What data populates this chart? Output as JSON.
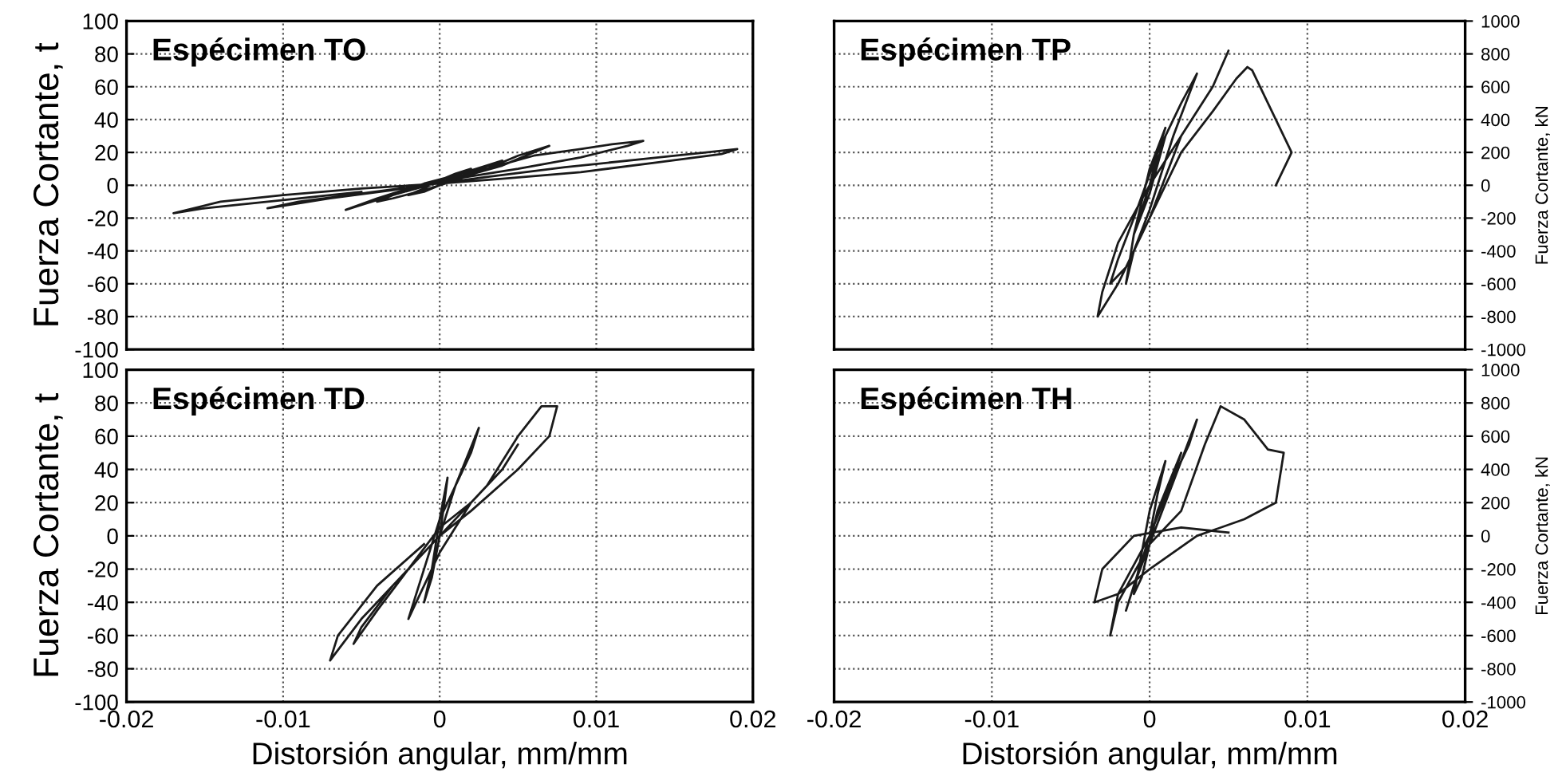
{
  "chart_data": [
    {
      "type": "line",
      "title": "Espécimen TO",
      "ylabel": "Fuerza Cortante, t",
      "xlim": [
        -0.02,
        0.02
      ],
      "xticks": [
        -0.02,
        -0.01,
        0,
        0.01,
        0.02
      ],
      "ylim": [
        -100,
        100
      ],
      "yticks": [
        -100,
        -80,
        -60,
        -40,
        -20,
        0,
        20,
        40,
        60,
        80,
        100
      ],
      "tick_labels": "y",
      "grid": true,
      "marker": "none",
      "line_style": "solid",
      "series": [
        {
          "color": "#1a1a1a",
          "x": [
            0,
            0.001,
            0.002,
            0.001,
            0,
            -0.001,
            -0.002,
            -0.001,
            0,
            0.002,
            0.004,
            0.003,
            0.001,
            -0.001,
            -0.003,
            -0.004,
            -0.003,
            -0.001,
            0.001,
            0.003,
            0.005,
            0.007,
            0.006,
            0.004,
            0.001,
            -0.002,
            -0.004,
            -0.006,
            -0.005,
            -0.003,
            0,
            0.003,
            0.006,
            0.009,
            0.011,
            0.013,
            0.012,
            0.009,
            0.005,
            0.001,
            -0.003,
            -0.007,
            -0.011,
            -0.009,
            -0.005,
            -0.001,
            0.003,
            0.008,
            0.013,
            0.017,
            0.019,
            0.018,
            0.014,
            0.009,
            0.004,
            0,
            -0.005,
            -0.01,
            -0.014,
            -0.017,
            -0.015,
            -0.01,
            -0.005
          ],
          "values": [
            0,
            6,
            10,
            7,
            3,
            -2,
            -6,
            -4,
            0,
            8,
            15,
            12,
            6,
            1,
            -6,
            -10,
            -8,
            -3,
            3,
            10,
            18,
            24,
            20,
            12,
            4,
            -2,
            -8,
            -15,
            -12,
            -6,
            2,
            10,
            18,
            22,
            25,
            27,
            24,
            17,
            10,
            4,
            -3,
            -8,
            -14,
            -10,
            -5,
            0,
            5,
            11,
            16,
            20,
            22,
            19,
            14,
            8,
            4,
            1,
            -2,
            -6,
            -10,
            -17,
            -14,
            -9,
            -4
          ]
        }
      ]
    },
    {
      "type": "line",
      "title": "Espécimen TP",
      "ylabel": "Fuerza Cortante, kN",
      "xlim": [
        -0.02,
        0.02
      ],
      "xticks": [
        -0.02,
        -0.01,
        0,
        0.01,
        0.02
      ],
      "ylim": [
        -1000,
        1000
      ],
      "yticks": [
        -1000,
        -800,
        -600,
        -400,
        -200,
        0,
        200,
        400,
        600,
        800,
        1000
      ],
      "tick_labels": "y",
      "grid": true,
      "marker": "none",
      "line_style": "solid",
      "series": [
        {
          "color": "#1a1a1a",
          "x": [
            0,
            0.0005,
            0.001,
            0,
            -0.0005,
            -0.001,
            0,
            0.001,
            0.002,
            0.001,
            0,
            -0.001,
            -0.0015,
            -0.001,
            0,
            0.0015,
            0.003,
            0.002,
            0.0005,
            -0.001,
            -0.002,
            -0.0025,
            -0.0015,
            0,
            0.002,
            0.004,
            0.005,
            0.004,
            0.002,
            0,
            -0.002,
            -0.003,
            -0.0033,
            -0.002,
            0,
            0.002,
            0.004,
            0.0055,
            0.0062,
            0.0065,
            0.0075,
            0.009,
            0.008
          ],
          "values": [
            0,
            200,
            350,
            100,
            -100,
            -300,
            -50,
            300,
            500,
            300,
            0,
            -300,
            -600,
            -400,
            -150,
            300,
            680,
            500,
            200,
            -200,
            -450,
            -600,
            -500,
            -200,
            300,
            600,
            820,
            600,
            300,
            0,
            -350,
            -650,
            -800,
            -600,
            -200,
            200,
            450,
            650,
            720,
            700,
            500,
            200,
            0
          ]
        }
      ]
    },
    {
      "type": "line",
      "title": "Espécimen TD",
      "ylabel": "Fuerza Cortante, t",
      "xlabel": "Distorsión angular, mm/mm",
      "xlim": [
        -0.02,
        0.02
      ],
      "xticks": [
        -0.02,
        -0.01,
        0,
        0.01,
        0.02
      ],
      "ylim": [
        -100,
        100
      ],
      "yticks": [
        -100,
        -80,
        -60,
        -40,
        -20,
        0,
        20,
        40,
        60,
        80,
        100
      ],
      "grid": true,
      "marker": "none",
      "line_style": "solid",
      "series": [
        {
          "color": "#1a1a1a",
          "x": [
            0,
            0.0003,
            0.0005,
            0,
            -0.0005,
            -0.001,
            -0.0005,
            0,
            0.001,
            0.0025,
            0.002,
            0.001,
            0,
            -0.001,
            -0.002,
            -0.0015,
            0,
            0.002,
            0.004,
            0.005,
            0.004,
            0.002,
            0,
            -0.002,
            -0.004,
            -0.0055,
            -0.005,
            -0.003,
            0,
            0.003,
            0.005,
            0.0065,
            0.0075,
            0.007,
            0.005,
            0.002,
            0,
            -0.002,
            -0.005,
            -0.007,
            -0.0065,
            -0.004,
            -0.001
          ],
          "values": [
            0,
            20,
            35,
            10,
            -20,
            -40,
            -25,
            0,
            30,
            65,
            50,
            30,
            10,
            -20,
            -50,
            -40,
            -10,
            20,
            40,
            55,
            40,
            20,
            5,
            -20,
            -45,
            -65,
            -55,
            -30,
            0,
            30,
            60,
            78,
            78,
            60,
            40,
            15,
            0,
            -20,
            -50,
            -75,
            -60,
            -30,
            -5
          ]
        }
      ]
    },
    {
      "type": "line",
      "title": "Espécimen TH",
      "ylabel": "Fuerza Cortante, kN",
      "xlabel": "Distorsión angular, mm/mm",
      "xlim": [
        -0.02,
        0.02
      ],
      "xticks": [
        -0.02,
        -0.01,
        0,
        0.01,
        0.02
      ],
      "ylim": [
        -1000,
        1000
      ],
      "yticks": [
        -1000,
        -800,
        -600,
        -400,
        -200,
        0,
        200,
        400,
        600,
        800,
        1000
      ],
      "grid": true,
      "marker": "none",
      "line_style": "solid",
      "series": [
        {
          "color": "#1a1a1a",
          "x": [
            0,
            0.0005,
            0.001,
            0,
            -0.0005,
            -0.001,
            -0.0005,
            0.0005,
            0.002,
            0.0015,
            0,
            -0.001,
            -0.0015,
            -0.001,
            0.001,
            0.003,
            0.0025,
            0.001,
            0,
            -0.002,
            -0.0025,
            -0.002,
            0,
            0.002,
            0.0035,
            0.0045,
            0.006,
            0.0075,
            0.0085,
            0.008,
            0.006,
            0.003,
            0,
            -0.002,
            -0.0035,
            -0.003,
            -0.001,
            0.002,
            0.005
          ],
          "values": [
            0,
            250,
            450,
            150,
            -100,
            -350,
            -250,
            150,
            500,
            350,
            0,
            -300,
            -450,
            -300,
            200,
            700,
            550,
            250,
            0,
            -350,
            -600,
            -400,
            -50,
            150,
            550,
            780,
            700,
            520,
            500,
            200,
            100,
            0,
            -200,
            -350,
            -400,
            -200,
            0,
            50,
            20
          ]
        }
      ]
    }
  ]
}
